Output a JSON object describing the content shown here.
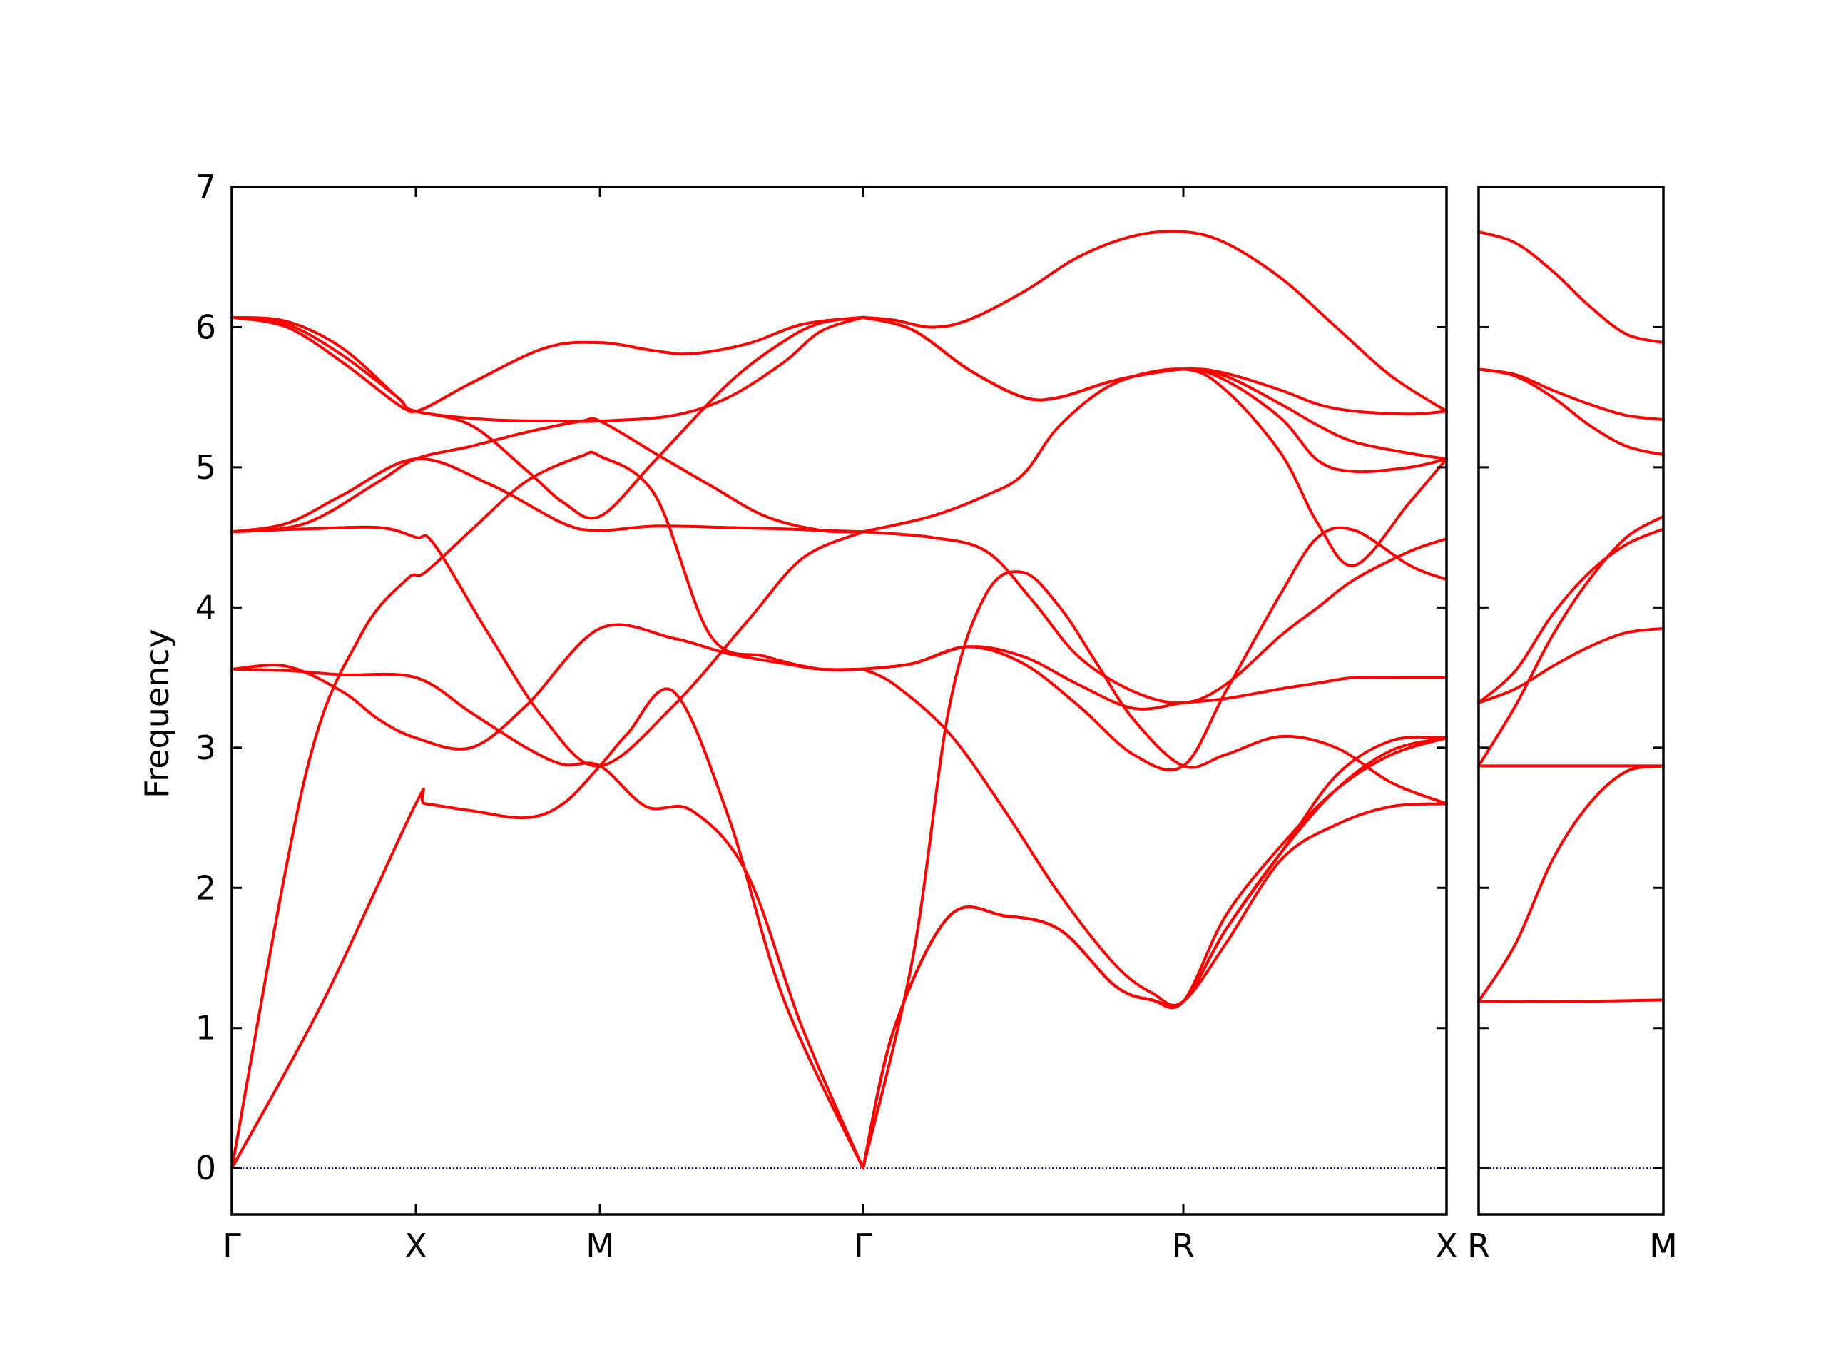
{
  "chart_data": {
    "type": "line",
    "ylabel": "Frequency",
    "ylim": [
      -0.33,
      7
    ],
    "yticks": [
      0,
      1,
      2,
      3,
      4,
      5,
      6,
      7
    ],
    "line_color": "#ff0000",
    "zero_line_color": "#0000aa",
    "panels": [
      {
        "xlim": [
          0,
          6.6
        ],
        "xticks": [
          {
            "pos": 0,
            "label": "Γ"
          },
          {
            "pos": 1.0,
            "label": "X"
          },
          {
            "pos": 2.0,
            "label": "M"
          },
          {
            "pos": 3.43,
            "label": "Γ"
          },
          {
            "pos": 5.17,
            "label": "R"
          },
          {
            "pos": 6.6,
            "label": "X"
          }
        ],
        "series": [
          {
            "x": [
              0,
              0.5,
              1.0,
              1.05,
              1.3,
              1.6,
              1.8,
              2.0,
              2.15,
              2.4,
              2.7,
              3.0,
              3.43
            ],
            "y": [
              0,
              1.2,
              2.6,
              2.6,
              2.55,
              2.5,
              2.6,
              2.87,
              3.1,
              3.4,
              2.5,
              1.2,
              0
            ]
          },
          {
            "x": [
              0,
              0.4,
              0.7,
              0.95,
              1.05,
              1.3,
              1.6,
              1.9,
              2.0,
              2.3,
              2.6,
              2.9,
              3.2,
              3.43
            ],
            "y": [
              0,
              2.8,
              3.8,
              4.2,
              4.25,
              4.55,
              4.9,
              5.08,
              5.08,
              4.8,
              3.8,
              3.65,
              3.56,
              3.56
            ]
          },
          {
            "x": [
              0,
              0.3,
              0.6,
              1.0,
              1.3,
              1.6,
              1.8,
              2.0,
              2.25,
              2.5,
              2.8,
              3.1,
              3.43
            ],
            "y": [
              3.56,
              3.55,
              3.52,
              3.5,
              3.25,
              3.0,
              2.88,
              2.87,
              2.58,
              2.55,
              2.1,
              1.0,
              0
            ]
          },
          {
            "x": [
              0,
              0.3,
              0.6,
              0.8,
              1.0,
              1.3,
              1.6,
              2.0,
              2.4,
              2.7,
              3.0,
              3.2,
              3.43
            ],
            "y": [
              3.56,
              3.58,
              3.4,
              3.2,
              3.07,
              3.0,
              3.3,
              3.85,
              3.78,
              3.67,
              3.6,
              3.56,
              3.56
            ]
          },
          {
            "x": [
              0,
              0.4,
              0.8,
              1.0,
              1.1,
              1.4,
              1.7,
              2.0,
              2.4,
              2.8,
              3.1,
              3.43
            ],
            "y": [
              4.54,
              4.56,
              4.57,
              4.5,
              4.45,
              3.8,
              3.2,
              2.87,
              3.3,
              3.9,
              4.35,
              4.54
            ]
          },
          {
            "x": [
              0,
              0.3,
              0.6,
              1.0,
              1.4,
              1.8,
              2.0,
              2.3,
              2.7,
              3.0,
              3.2,
              3.43
            ],
            "y": [
              4.54,
              4.6,
              4.8,
              5.06,
              4.88,
              4.6,
              4.55,
              4.58,
              4.57,
              4.56,
              4.55,
              4.54
            ]
          },
          {
            "x": [
              0,
              0.4,
              0.8,
              1.0,
              1.3,
              1.6,
              1.9,
              2.0,
              2.3,
              2.6,
              2.9,
              3.2,
              3.43
            ],
            "y": [
              4.54,
              4.6,
              4.9,
              5.06,
              5.15,
              5.25,
              5.33,
              5.33,
              5.1,
              4.87,
              4.65,
              4.55,
              4.54
            ]
          },
          {
            "x": [
              0,
              0.3,
              0.6,
              0.9,
              1.0,
              1.3,
              1.6,
              1.8,
              2.0,
              2.3,
              2.7,
              3.0,
              3.2,
              3.43
            ],
            "y": [
              6.07,
              6.0,
              5.75,
              5.45,
              5.4,
              5.3,
              4.98,
              4.75,
              4.65,
              5.05,
              5.6,
              5.9,
              6.03,
              6.07
            ]
          },
          {
            "x": [
              0,
              0.3,
              0.6,
              0.9,
              1.0,
              1.4,
              1.8,
              2.0,
              2.4,
              2.7,
              3.0,
              3.2,
              3.43
            ],
            "y": [
              6.07,
              6.02,
              5.8,
              5.5,
              5.4,
              5.34,
              5.33,
              5.33,
              5.37,
              5.5,
              5.75,
              5.97,
              6.07
            ]
          },
          {
            "x": [
              0,
              0.3,
              0.6,
              0.9,
              1.0,
              1.3,
              1.7,
              2.0,
              2.3,
              2.5,
              2.8,
              3.1,
              3.43
            ],
            "y": [
              6.07,
              6.04,
              5.85,
              5.5,
              5.4,
              5.6,
              5.85,
              5.89,
              5.83,
              5.81,
              5.88,
              6.02,
              6.07
            ]
          },
          {
            "x": [
              3.43,
              3.6,
              3.9,
              4.2,
              4.5,
              4.8,
              5.0,
              5.17,
              5.4,
              5.7,
              6.0,
              6.3,
              6.6
            ],
            "y": [
              0,
              1.0,
              1.8,
              1.8,
              1.7,
              1.3,
              1.2,
              1.19,
              1.6,
              2.2,
              2.45,
              2.58,
              2.6
            ]
          },
          {
            "x": [
              3.43,
              3.6,
              3.9,
              4.2,
              4.5,
              4.8,
              5.0,
              5.17,
              5.4,
              5.7,
              6.0,
              6.3,
              6.6
            ],
            "y": [
              0,
              1.0,
              1.8,
              1.8,
              1.7,
              1.3,
              1.2,
              1.19,
              1.7,
              2.25,
              2.7,
              2.98,
              3.07
            ]
          },
          {
            "x": [
              3.43,
              3.6,
              3.9,
              4.2,
              4.5,
              4.8,
              5.0,
              5.17,
              5.4,
              5.7,
              6.0,
              6.3,
              6.6
            ],
            "y": [
              0,
              1.0,
              1.8,
              1.8,
              1.7,
              1.3,
              1.2,
              1.19,
              1.8,
              2.3,
              2.7,
              2.95,
              3.07
            ]
          },
          {
            "x": [
              3.43,
              3.7,
              3.9,
              4.1,
              4.3,
              4.5,
              4.7,
              4.9,
              5.17,
              5.4,
              5.7,
              6.0,
              6.3,
              6.6
            ],
            "y": [
              0,
              1.5,
              3.3,
              4.1,
              4.25,
              4.0,
              3.6,
              3.2,
              2.87,
              2.95,
              3.08,
              3.0,
              2.75,
              2.6
            ]
          },
          {
            "x": [
              3.43,
              3.6,
              3.9,
              4.2,
              4.5,
              4.8,
              5.0,
              5.17,
              5.4,
              5.7,
              6.0,
              6.3,
              6.6
            ],
            "y": [
              3.56,
              3.45,
              3.1,
              2.55,
              1.95,
              1.45,
              1.25,
              1.19,
              1.7,
              2.25,
              2.8,
              3.05,
              3.07
            ]
          },
          {
            "x": [
              3.43,
              3.7,
              4.0,
              4.3,
              4.6,
              4.9,
              5.17,
              5.4,
              5.7,
              5.9,
              6.1,
              6.4,
              6.6
            ],
            "y": [
              3.56,
              3.6,
              3.72,
              3.65,
              3.45,
              3.28,
              3.32,
              3.35,
              3.42,
              3.46,
              3.5,
              3.5,
              3.5
            ]
          },
          {
            "x": [
              3.43,
              3.7,
              4.0,
              4.3,
              4.6,
              4.9,
              5.17,
              5.4,
              5.7,
              5.9,
              6.1,
              6.4,
              6.6
            ],
            "y": [
              3.56,
              3.6,
              3.72,
              3.6,
              3.3,
              2.95,
              2.87,
              3.4,
              4.1,
              4.5,
              4.55,
              4.3,
              4.2
            ]
          },
          {
            "x": [
              3.43,
              3.8,
              4.1,
              4.35,
              4.6,
              4.9,
              5.17,
              5.4,
              5.7,
              5.9,
              6.1,
              6.4,
              6.6
            ],
            "y": [
              4.54,
              4.5,
              4.4,
              4.05,
              3.65,
              3.4,
              3.32,
              3.45,
              3.8,
              4.0,
              4.2,
              4.4,
              4.49
            ]
          },
          {
            "x": [
              3.43,
              3.8,
              4.1,
              4.3,
              4.5,
              4.8,
              5.17,
              5.4,
              5.7,
              5.9,
              6.1,
              6.4,
              6.6
            ],
            "y": [
              4.54,
              4.65,
              4.8,
              4.95,
              5.3,
              5.6,
              5.7,
              5.55,
              5.1,
              4.6,
              4.3,
              4.75,
              5.06
            ]
          },
          {
            "x": [
              3.43,
              3.7,
              4.0,
              4.3,
              4.5,
              4.8,
              5.17,
              5.4,
              5.7,
              5.9,
              6.1,
              6.4,
              6.6
            ],
            "y": [
              6.07,
              5.98,
              5.7,
              5.5,
              5.5,
              5.62,
              5.7,
              5.62,
              5.35,
              5.05,
              4.97,
              5.0,
              5.06
            ]
          },
          {
            "x": [
              3.43,
              3.7,
              4.0,
              4.3,
              4.5,
              4.8,
              5.17,
              5.4,
              5.7,
              5.9,
              6.1,
              6.4,
              6.6
            ],
            "y": [
              6.07,
              5.98,
              5.7,
              5.5,
              5.5,
              5.62,
              5.7,
              5.65,
              5.45,
              5.3,
              5.18,
              5.1,
              5.06
            ]
          },
          {
            "x": [
              3.43,
              3.7,
              4.0,
              4.3,
              4.5,
              4.8,
              5.17,
              5.4,
              5.7,
              5.9,
              6.1,
              6.4,
              6.6
            ],
            "y": [
              6.07,
              5.98,
              5.7,
              5.5,
              5.5,
              5.62,
              5.7,
              5.67,
              5.55,
              5.45,
              5.4,
              5.38,
              5.4
            ]
          },
          {
            "x": [
              3.43,
              3.6,
              3.8,
              4.0,
              4.3,
              4.6,
              4.9,
              5.17,
              5.4,
              5.7,
              6.0,
              6.3,
              6.6
            ],
            "y": [
              6.07,
              6.05,
              6.0,
              6.05,
              6.25,
              6.5,
              6.65,
              6.68,
              6.6,
              6.35,
              6.0,
              5.65,
              5.4
            ]
          }
        ]
      },
      {
        "xlim": [
          0,
          1.0
        ],
        "xticks": [
          {
            "pos": 0,
            "label": "R"
          },
          {
            "pos": 1.0,
            "label": "M"
          }
        ],
        "series": [
          {
            "x": [
              0,
              0.5,
              1.0
            ],
            "y": [
              1.19,
              1.19,
              1.2
            ]
          },
          {
            "x": [
              0,
              0.2,
              0.4,
              0.6,
              0.8,
              1.0
            ],
            "y": [
              1.19,
              1.6,
              2.2,
              2.6,
              2.83,
              2.87
            ]
          },
          {
            "x": [
              0,
              0.5,
              1.0
            ],
            "y": [
              2.87,
              2.87,
              2.87
            ]
          },
          {
            "x": [
              0,
              0.2,
              0.4,
              0.6,
              0.8,
              1.0
            ],
            "y": [
              2.87,
              3.3,
              3.8,
              4.2,
              4.5,
              4.65
            ]
          },
          {
            "x": [
              0,
              0.2,
              0.4,
              0.6,
              0.8,
              1.0
            ],
            "y": [
              3.32,
              3.55,
              3.95,
              4.25,
              4.45,
              4.56
            ]
          },
          {
            "x": [
              0,
              0.2,
              0.4,
              0.6,
              0.8,
              1.0
            ],
            "y": [
              3.32,
              3.42,
              3.58,
              3.72,
              3.82,
              3.85
            ]
          },
          {
            "x": [
              0,
              0.2,
              0.4,
              0.6,
              0.8,
              1.0
            ],
            "y": [
              5.7,
              5.65,
              5.5,
              5.3,
              5.15,
              5.09
            ]
          },
          {
            "x": [
              0,
              0.2,
              0.4,
              0.6,
              0.8,
              1.0
            ],
            "y": [
              5.7,
              5.66,
              5.55,
              5.45,
              5.37,
              5.34
            ]
          },
          {
            "x": [
              0,
              0.2,
              0.4,
              0.6,
              0.8,
              1.0
            ],
            "y": [
              6.68,
              6.6,
              6.4,
              6.15,
              5.95,
              5.89
            ]
          }
        ]
      }
    ]
  }
}
